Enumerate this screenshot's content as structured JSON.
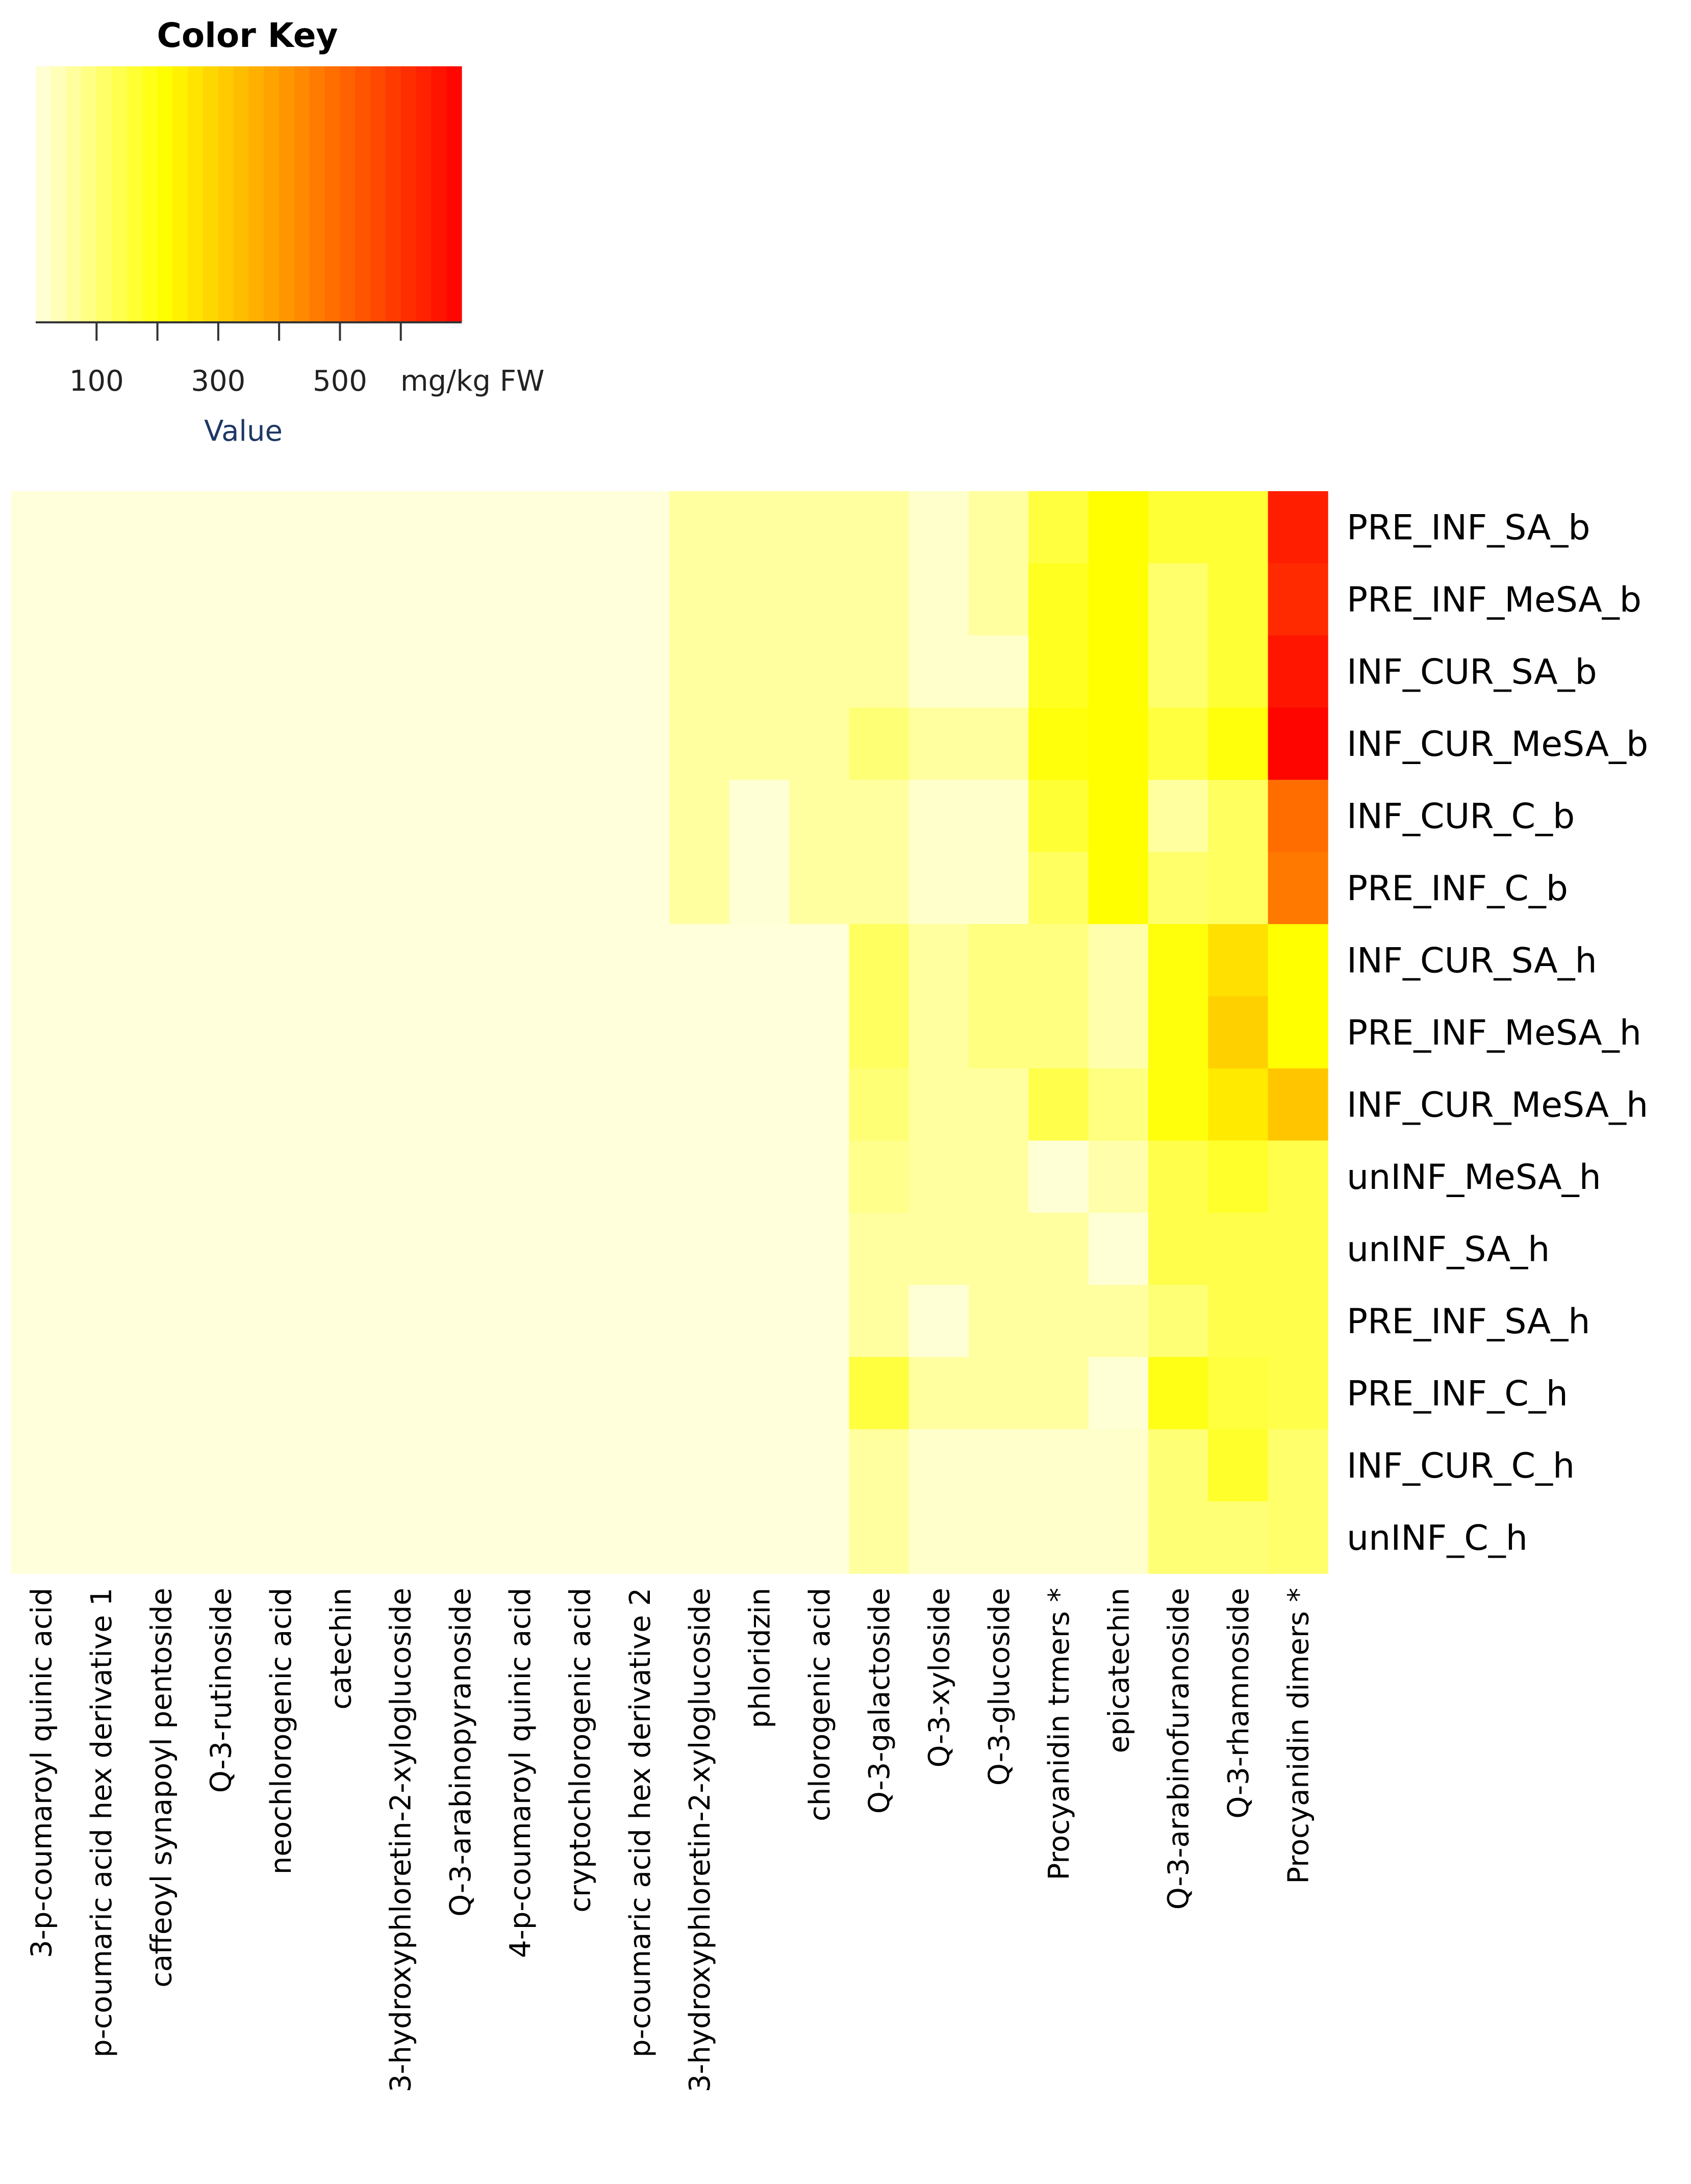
{
  "chart_data": {
    "type": "heatmap",
    "color_key": {
      "title": "Color Key",
      "xlabel": "Value",
      "unit": "mg/kg FW",
      "tick_labels": [
        "100",
        "300",
        "500"
      ],
      "tick_values": [
        100,
        300,
        500
      ],
      "range": [
        0,
        700
      ],
      "colors": {
        "low": "#ffffe0",
        "mid": "#ffff00",
        "high": "#ff0000"
      }
    },
    "rows": [
      "PRE_INF_SA_b",
      "PRE_INF_MeSA_b",
      "INF_CUR_SA_b",
      "INF_CUR_MeSA_b",
      "INF_CUR_C_b",
      "PRE_INF_C_b",
      "INF_CUR_SA_h",
      "PRE_INF_MeSA_h",
      "INF_CUR_MeSA_h",
      "unINF_MeSA_h",
      "unINF_SA_h",
      "PRE_INF_SA_h",
      "PRE_INF_C_h",
      "INF_CUR_C_h",
      "unINF_C_h"
    ],
    "columns": [
      "3-p-coumaroyl quinic acid",
      "p-coumaric acid hex derivative 1",
      "caffeoyl synapoyl pentoside",
      "Q-3-rutinoside",
      "neochlorogenic acid",
      "catechin",
      "3-hydroxyphloretin-2-xyloglucoside",
      "Q-3-arabinopyranoside",
      "4-p-coumaroyl quinic acid",
      "cryptochlorogenic acid",
      "p-coumaric acid hex derivative 2",
      "3-hydroxyphloretin-2-xyloglucoside",
      "phloridzin",
      "chlorogenic acid",
      "Q-3-galactoside",
      "Q-3-xyloside",
      "Q-3-glucoside",
      "Procyanidin trmers *",
      "epicatechin",
      "Q-3-arabinofuranoside",
      "Q-3-rhamnoside",
      "Procyanidin dimers *"
    ],
    "values": [
      [
        5,
        5,
        5,
        5,
        5,
        5,
        5,
        5,
        5,
        5,
        5,
        60,
        60,
        60,
        60,
        20,
        60,
        150,
        210,
        160,
        160,
        640
      ],
      [
        5,
        5,
        5,
        5,
        5,
        5,
        5,
        5,
        5,
        5,
        5,
        60,
        60,
        60,
        60,
        20,
        60,
        180,
        210,
        110,
        160,
        620
      ],
      [
        5,
        5,
        5,
        5,
        5,
        5,
        5,
        5,
        5,
        5,
        5,
        60,
        60,
        60,
        60,
        20,
        20,
        180,
        210,
        110,
        160,
        660
      ],
      [
        5,
        5,
        5,
        5,
        5,
        5,
        5,
        5,
        5,
        5,
        5,
        60,
        60,
        60,
        100,
        60,
        60,
        200,
        210,
        150,
        200,
        690
      ],
      [
        5,
        5,
        5,
        5,
        5,
        5,
        5,
        5,
        5,
        5,
        5,
        60,
        10,
        60,
        60,
        20,
        20,
        160,
        210,
        60,
        120,
        490
      ],
      [
        5,
        5,
        5,
        5,
        5,
        5,
        5,
        5,
        5,
        5,
        5,
        60,
        10,
        60,
        60,
        20,
        20,
        120,
        210,
        110,
        120,
        470
      ],
      [
        5,
        5,
        5,
        5,
        5,
        5,
        5,
        5,
        5,
        5,
        5,
        5,
        5,
        5,
        120,
        60,
        90,
        90,
        50,
        200,
        270,
        210
      ],
      [
        5,
        5,
        5,
        5,
        5,
        5,
        5,
        5,
        5,
        5,
        5,
        5,
        5,
        5,
        120,
        60,
        90,
        90,
        50,
        200,
        300,
        210
      ],
      [
        5,
        5,
        5,
        5,
        5,
        5,
        5,
        5,
        5,
        5,
        5,
        5,
        5,
        5,
        100,
        60,
        60,
        140,
        90,
        200,
        250,
        320
      ],
      [
        5,
        5,
        5,
        5,
        5,
        5,
        5,
        5,
        5,
        5,
        5,
        5,
        5,
        5,
        80,
        60,
        60,
        10,
        50,
        140,
        170,
        140
      ],
      [
        5,
        5,
        5,
        5,
        5,
        5,
        5,
        5,
        5,
        5,
        5,
        5,
        5,
        5,
        60,
        60,
        60,
        60,
        10,
        140,
        140,
        140
      ],
      [
        5,
        5,
        5,
        5,
        5,
        5,
        5,
        5,
        5,
        5,
        5,
        5,
        5,
        5,
        60,
        10,
        60,
        60,
        60,
        100,
        140,
        140
      ],
      [
        5,
        5,
        5,
        5,
        5,
        5,
        5,
        5,
        5,
        5,
        5,
        5,
        5,
        5,
        150,
        60,
        60,
        60,
        10,
        190,
        150,
        140
      ],
      [
        5,
        5,
        5,
        5,
        5,
        5,
        5,
        5,
        5,
        5,
        5,
        5,
        5,
        5,
        60,
        20,
        20,
        20,
        20,
        100,
        170,
        110
      ],
      [
        5,
        5,
        5,
        5,
        5,
        5,
        5,
        5,
        5,
        5,
        5,
        5,
        5,
        5,
        60,
        20,
        20,
        20,
        20,
        100,
        100,
        110
      ]
    ]
  }
}
